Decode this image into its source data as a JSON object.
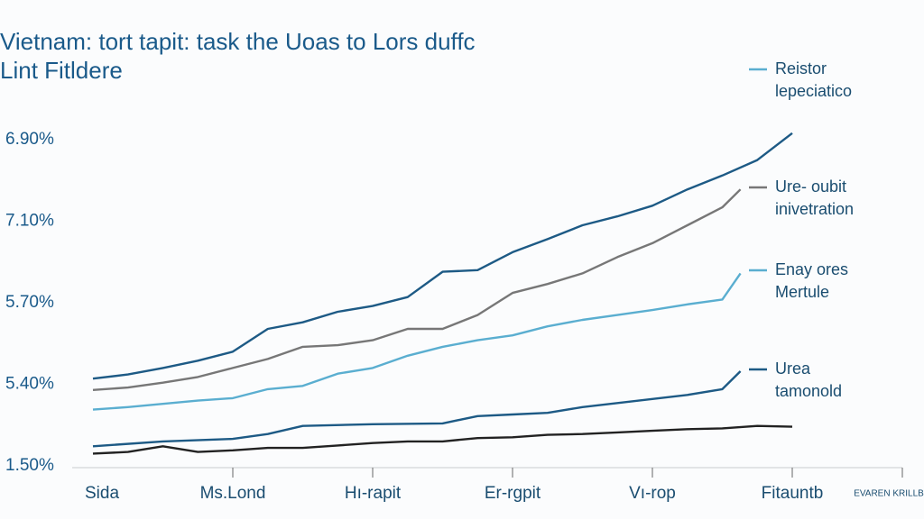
{
  "chart_data": {
    "type": "line",
    "title": [
      "Vietnam: tort tapit: task the Uoas to Lors duffc",
      "Lint Fitldere"
    ],
    "y_labels": [
      "6.90%",
      "7.10%",
      "5.70%",
      "5.40%",
      "1.50%"
    ],
    "ylim": [
      0,
      4
    ],
    "xlim": [
      0,
      6.3
    ],
    "xticks": [
      {
        "value": 0,
        "label": "Sida"
      },
      {
        "value": 1,
        "label": "Ms.Lond"
      },
      {
        "value": 2,
        "label": "Hı-rapit"
      },
      {
        "value": 3,
        "label": "Er-rgpit"
      },
      {
        "value": 4,
        "label": "Vı-rop"
      },
      {
        "value": 5,
        "label": "Fitauntb"
      },
      {
        "value": 6.3,
        "label": "EVAREN KRILLB"
      }
    ],
    "series": [
      {
        "color": "#1d5a85",
        "x": [
          0,
          0.25,
          0.5,
          0.75,
          1,
          1.25,
          1.5,
          1.75,
          2,
          2.25,
          2.5,
          2.75,
          3,
          3.25,
          3.5,
          3.75,
          4,
          4.25,
          4.5,
          4.75,
          5
        ],
        "values": [
          1.07,
          1.12,
          1.2,
          1.29,
          1.4,
          1.68,
          1.76,
          1.89,
          1.96,
          2.07,
          2.38,
          2.4,
          2.62,
          2.78,
          2.95,
          3.06,
          3.19,
          3.39,
          3.56,
          3.75,
          4.08
        ]
      },
      {
        "color": "#777777",
        "x": [
          0,
          0.25,
          0.5,
          0.75,
          1,
          1.25,
          1.5,
          1.75,
          2,
          2.25,
          2.5,
          2.75,
          3,
          3.25,
          3.5,
          3.75,
          4,
          4.25,
          4.5,
          4.63
        ],
        "values": [
          0.93,
          0.96,
          1.02,
          1.09,
          1.2,
          1.31,
          1.46,
          1.48,
          1.54,
          1.68,
          1.68,
          1.85,
          2.12,
          2.23,
          2.36,
          2.56,
          2.73,
          2.95,
          3.17,
          3.39
        ]
      },
      {
        "color": "#5aaed0",
        "x": [
          0,
          0.25,
          0.5,
          0.75,
          1,
          1.25,
          1.5,
          1.75,
          2,
          2.25,
          2.5,
          2.75,
          3,
          3.25,
          3.5,
          3.75,
          4,
          4.25,
          4.5,
          4.63
        ],
        "values": [
          0.69,
          0.72,
          0.76,
          0.8,
          0.83,
          0.94,
          0.98,
          1.13,
          1.2,
          1.35,
          1.46,
          1.54,
          1.6,
          1.71,
          1.79,
          1.85,
          1.91,
          1.98,
          2.04,
          2.36
        ]
      },
      {
        "color": "#1d5a85",
        "x": [
          0,
          0.5,
          1,
          1.25,
          1.5,
          2,
          2.5,
          2.75,
          3,
          3.25,
          3.5,
          3.75,
          4,
          4.25,
          4.5,
          4.63
        ],
        "values": [
          0.24,
          0.3,
          0.33,
          0.39,
          0.49,
          0.51,
          0.52,
          0.61,
          0.63,
          0.65,
          0.72,
          0.77,
          0.82,
          0.87,
          0.94,
          1.16
        ]
      },
      {
        "color": "#222222",
        "x": [
          0,
          0.25,
          0.5,
          0.75,
          1,
          1.25,
          1.5,
          1.75,
          2,
          2.25,
          2.5,
          2.75,
          3,
          3.25,
          3.5,
          3.75,
          4,
          4.25,
          4.5,
          4.75,
          5
        ],
        "values": [
          0.15,
          0.17,
          0.24,
          0.17,
          0.19,
          0.22,
          0.22,
          0.25,
          0.28,
          0.3,
          0.3,
          0.34,
          0.35,
          0.38,
          0.39,
          0.41,
          0.43,
          0.45,
          0.46,
          0.49,
          0.48
        ]
      }
    ],
    "legend": [
      {
        "color": "#5aaed0",
        "lines": [
          "Reistor",
          "lepeciatico"
        ]
      },
      {
        "color": "#777777",
        "lines": [
          "Ure- oubit",
          "inivetration"
        ]
      },
      {
        "color": "#5aaed0",
        "lines": [
          "Enay ores",
          "Mertule"
        ]
      },
      {
        "color": "#1d5a85",
        "lines": [
          "Urea",
          "tamonold"
        ]
      }
    ]
  }
}
